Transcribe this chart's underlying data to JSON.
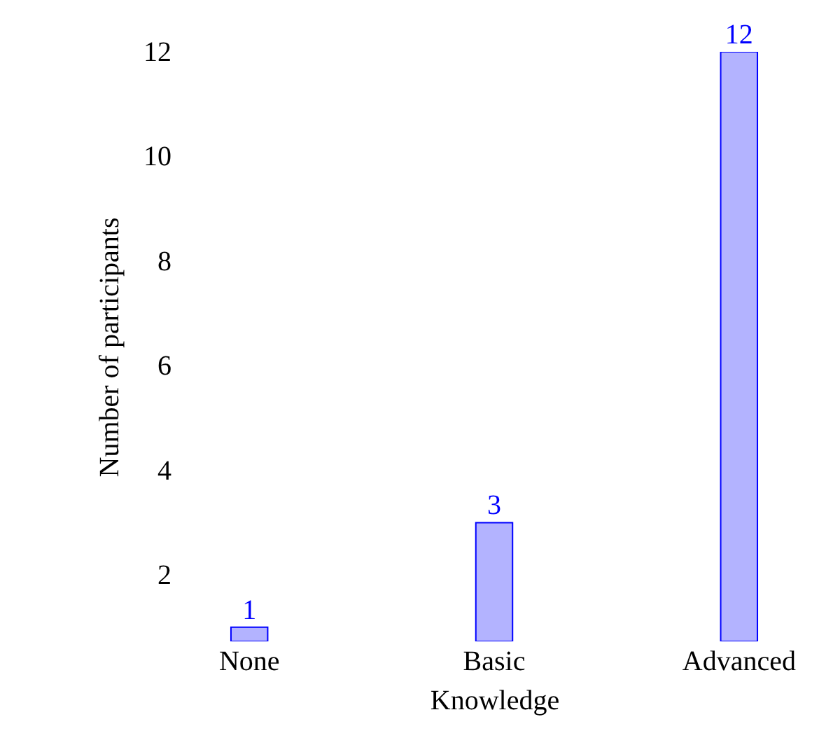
{
  "chart_data": {
    "type": "bar",
    "categories": [
      "None",
      "Basic",
      "Advanced"
    ],
    "values": [
      1,
      3,
      12
    ],
    "color": "#b3b3ff",
    "xlabel": "Knowledge",
    "ylabel": "Number of participants",
    "ylim": [
      0.73,
      12
    ],
    "yticks": [
      2,
      4,
      6,
      8,
      10,
      12
    ],
    "data_labels": true
  }
}
